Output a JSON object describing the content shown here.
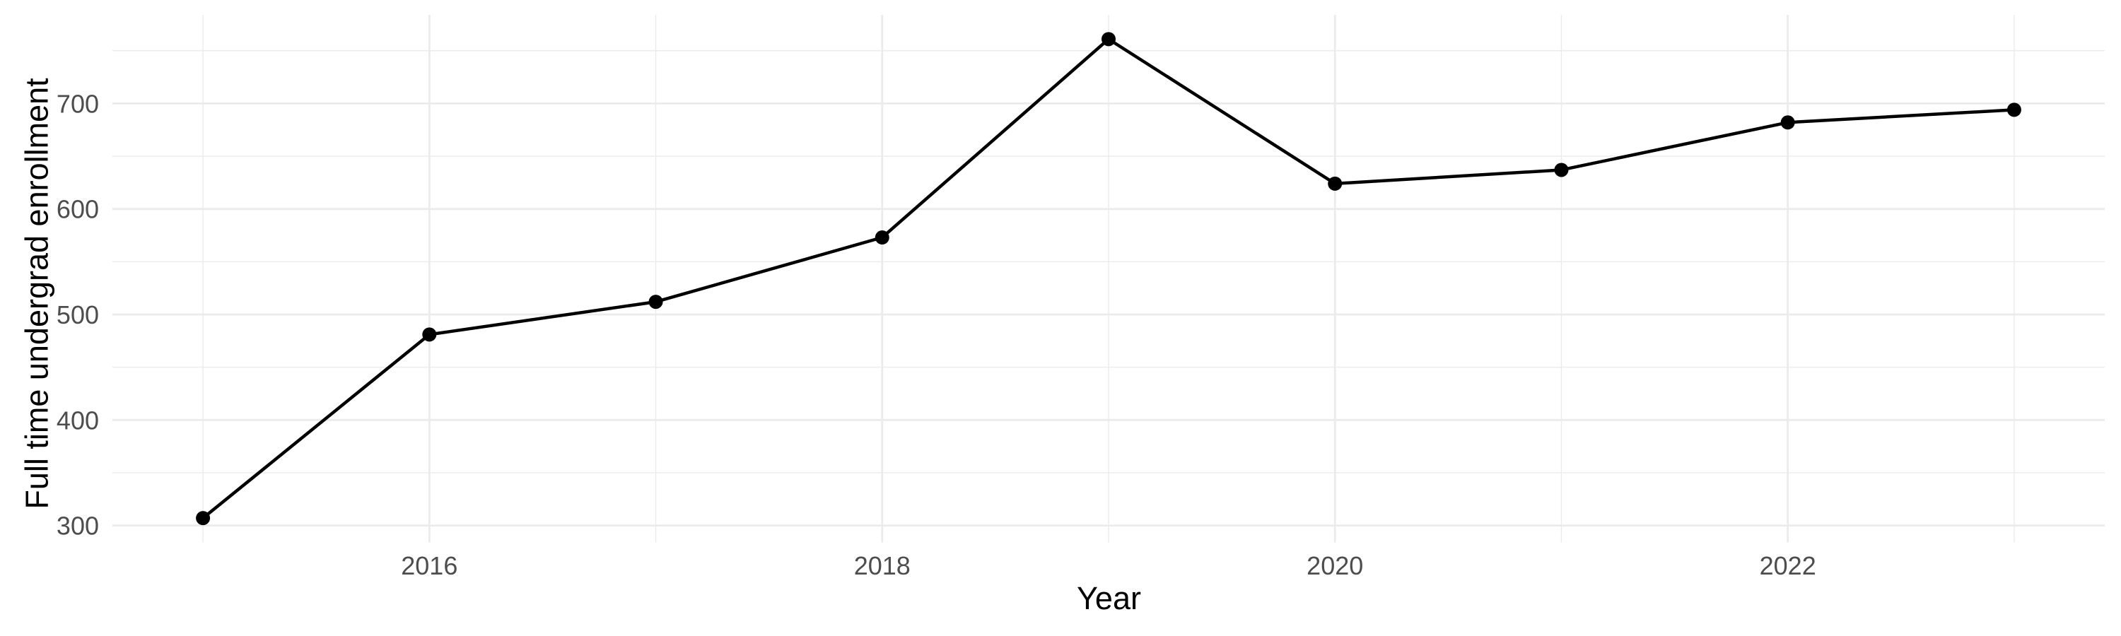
{
  "chart_data": {
    "type": "line",
    "title": "",
    "xlabel": "Year",
    "ylabel": "Full time undergrad enrollment",
    "x": [
      2015,
      2016,
      2017,
      2018,
      2019,
      2020,
      2021,
      2022,
      2023
    ],
    "values": [
      307,
      481,
      512,
      573,
      761,
      624,
      637,
      682,
      694
    ],
    "x_ticks": [
      2016,
      2018,
      2020,
      2022
    ],
    "x_minor_gridlines": [
      2015,
      2017,
      2019,
      2021,
      2023
    ],
    "y_ticks": [
      300,
      400,
      500,
      600,
      700
    ],
    "y_minor_gridlines": [
      350,
      450,
      550,
      650,
      750
    ],
    "xlim": [
      2014.6,
      2023.4
    ],
    "ylim": [
      284,
      784
    ],
    "grid": "major-and-minor",
    "legend": "none",
    "marker": "filled-circle",
    "colors": {
      "line": "#000000",
      "point": "#000000",
      "grid": "#EBEBEB",
      "tick_labels": "#4D4D4D",
      "axis_titles": "#000000",
      "background": "#FFFFFF"
    }
  }
}
